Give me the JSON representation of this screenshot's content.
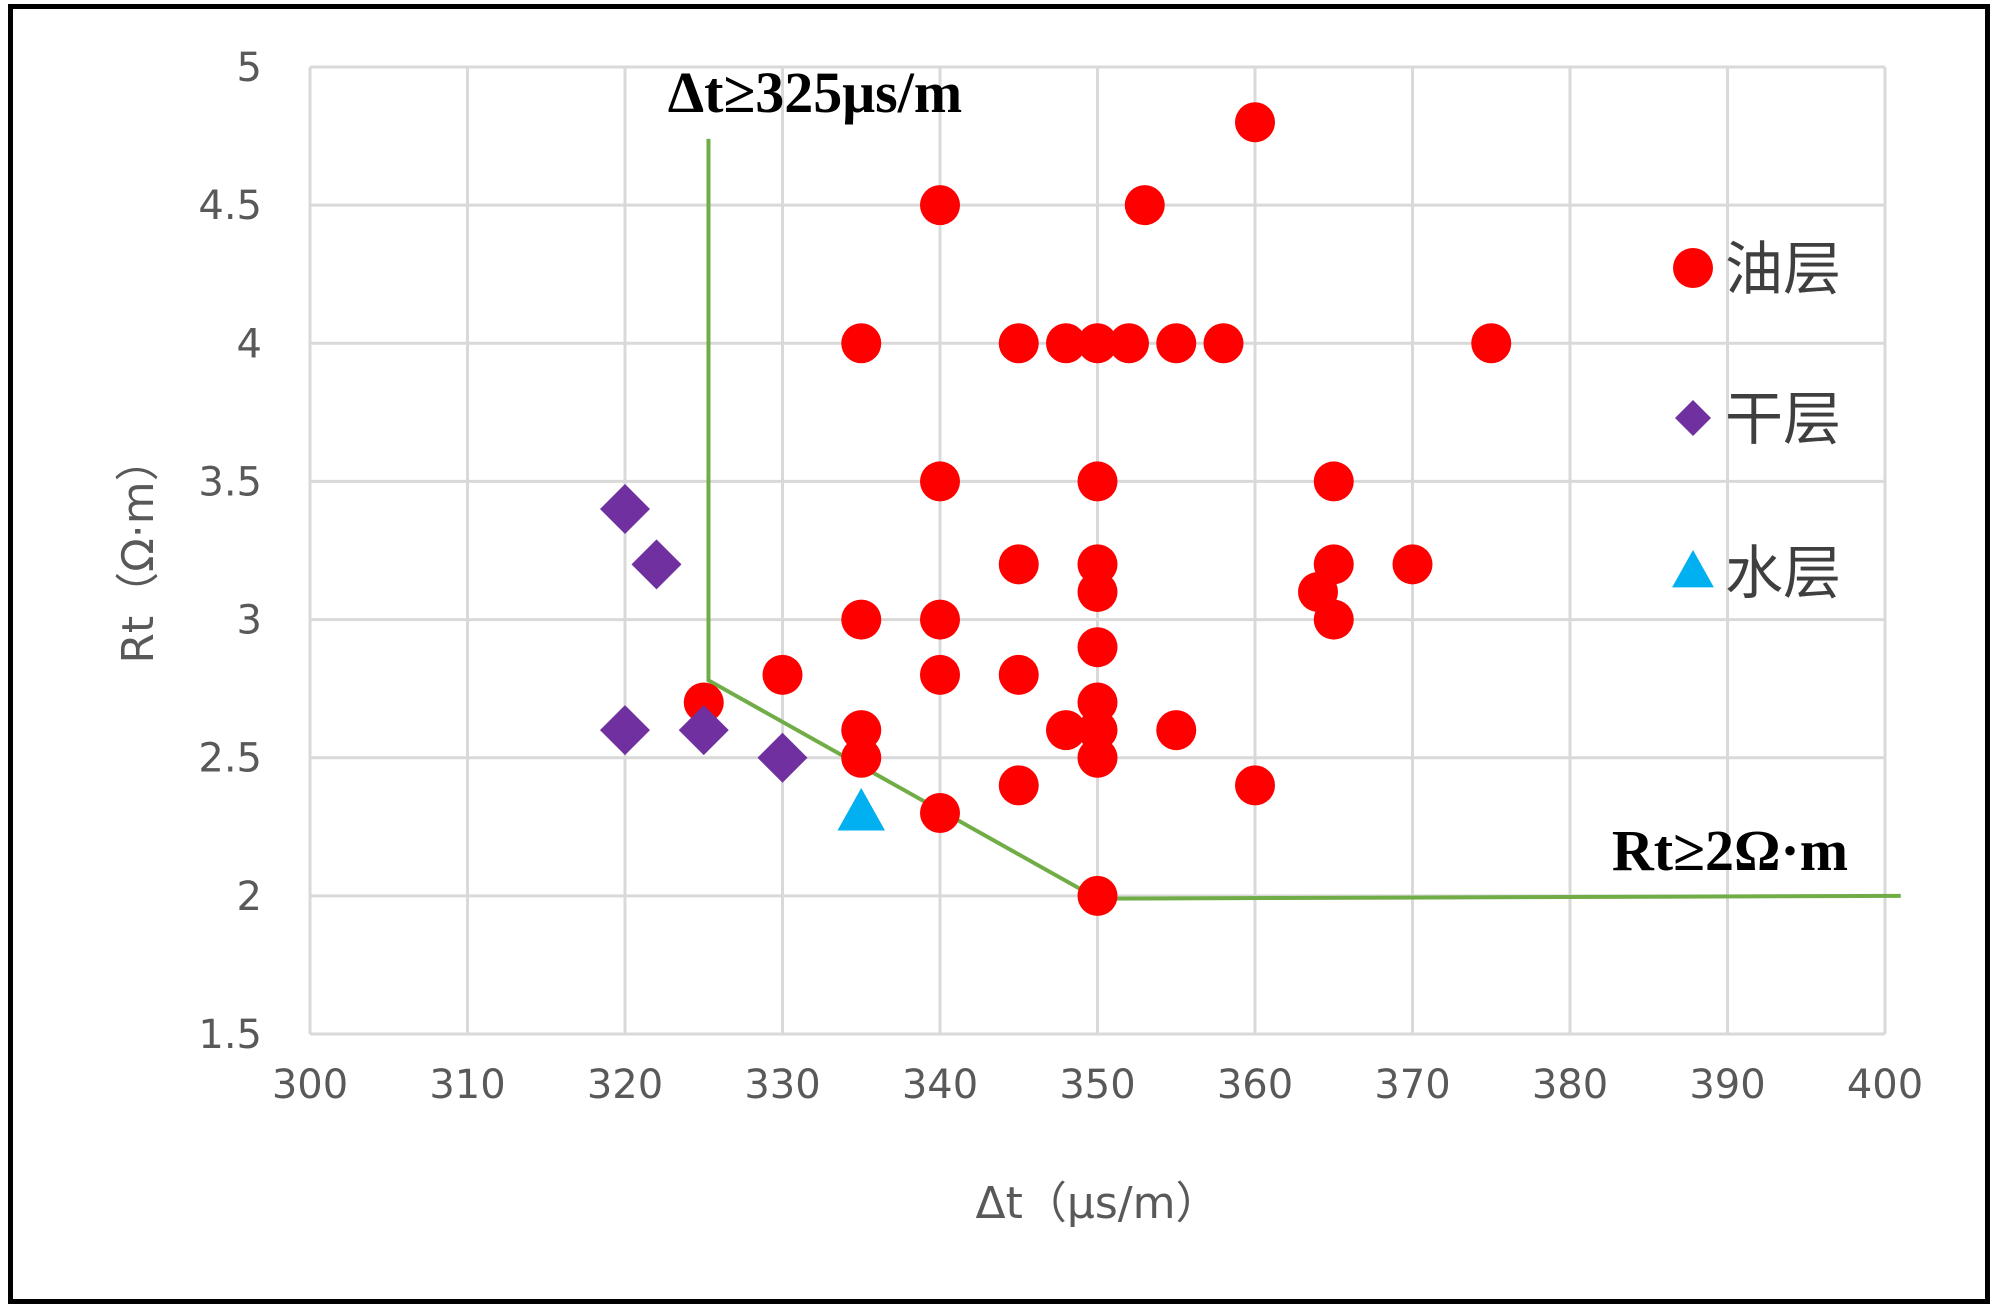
{
  "chart_data": {
    "type": "scatter",
    "xlabel": "Δt（μs/m）",
    "ylabel": "Rt（Ω·m）",
    "xlim": [
      300,
      400
    ],
    "ylim": [
      1.5,
      5
    ],
    "x_ticks": [
      "300",
      "310",
      "320",
      "330",
      "340",
      "350",
      "360",
      "370",
      "380",
      "390",
      "400"
    ],
    "y_ticks": [
      "1.5",
      "2",
      "2.5",
      "3",
      "3.5",
      "4",
      "4.5",
      "5"
    ],
    "grid": true,
    "legend_position": "right",
    "series": [
      {
        "name": "油层",
        "marker": "circle",
        "color": "#ff0000",
        "points": [
          [
            360,
            4.8
          ],
          [
            340,
            4.5
          ],
          [
            353,
            4.5
          ],
          [
            335,
            4
          ],
          [
            345,
            4
          ],
          [
            348,
            4
          ],
          [
            350,
            4
          ],
          [
            352,
            4
          ],
          [
            355,
            4
          ],
          [
            358,
            4
          ],
          [
            375,
            4
          ],
          [
            340,
            3.5
          ],
          [
            350,
            3.5
          ],
          [
            365,
            3.5
          ],
          [
            345,
            3.2
          ],
          [
            350,
            3.2
          ],
          [
            365,
            3.2
          ],
          [
            370,
            3.2
          ],
          [
            350,
            3.1
          ],
          [
            364,
            3.1
          ],
          [
            335,
            3
          ],
          [
            340,
            3
          ],
          [
            365,
            3
          ],
          [
            350,
            2.9
          ],
          [
            330,
            2.8
          ],
          [
            340,
            2.8
          ],
          [
            345,
            2.8
          ],
          [
            325,
            2.7
          ],
          [
            350,
            2.7
          ],
          [
            335,
            2.6
          ],
          [
            348,
            2.6
          ],
          [
            350,
            2.6
          ],
          [
            355,
            2.6
          ],
          [
            335,
            2.5
          ],
          [
            350,
            2.5
          ],
          [
            345,
            2.4
          ],
          [
            360,
            2.4
          ],
          [
            340,
            2.3
          ],
          [
            350,
            2
          ]
        ]
      },
      {
        "name": "干层",
        "marker": "diamond",
        "color": "#7030a0",
        "points": [
          [
            320,
            3.4
          ],
          [
            322,
            3.2
          ],
          [
            320,
            2.6
          ],
          [
            325,
            2.6
          ],
          [
            330,
            2.5
          ]
        ]
      },
      {
        "name": "水层",
        "marker": "triangle",
        "color": "#00b0f0",
        "points": [
          [
            335,
            2.3
          ]
        ]
      }
    ],
    "boundary_line": {
      "color": "#70ad47",
      "points": [
        [
          325.3,
          4.74
        ],
        [
          325.3,
          2.78
        ],
        [
          350,
          1.99
        ],
        [
          401,
          2.0
        ]
      ]
    },
    "annotations": [
      "Δt≥325μs/m",
      "Rt≥2Ω·m"
    ]
  }
}
